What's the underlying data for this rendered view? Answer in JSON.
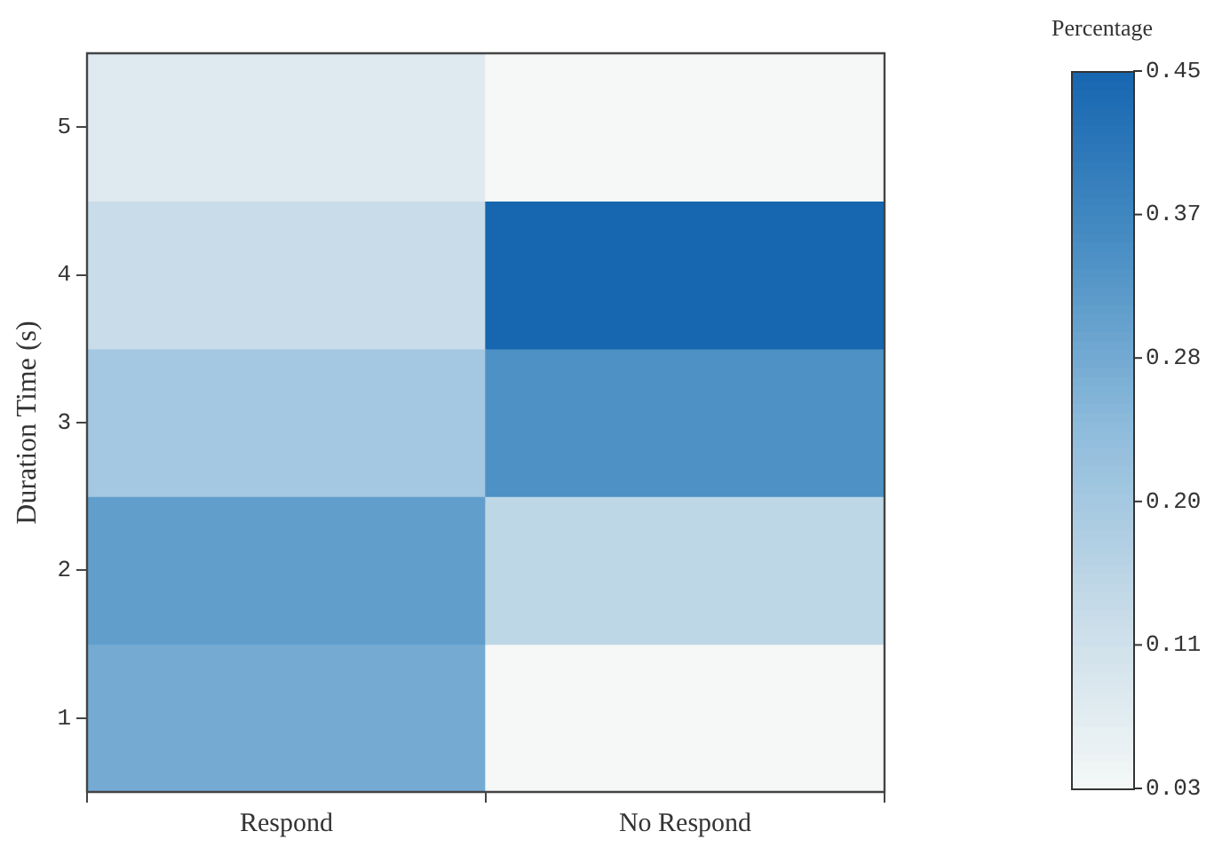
{
  "chart_data": {
    "type": "heatmap",
    "ylabel": "Duration Time (s)",
    "clabel": "Percentage",
    "categories": [
      "Respond",
      "No Respond"
    ],
    "y_categories": [
      "5",
      "4",
      "3",
      "2",
      "1"
    ],
    "cells": [
      [
        0.08,
        0.03
      ],
      [
        0.13,
        0.45
      ],
      [
        0.2,
        0.34
      ],
      [
        0.31,
        0.15
      ],
      [
        0.28,
        0.03
      ]
    ],
    "clim": [
      0.03,
      0.45
    ],
    "cticks": [
      {
        "value": 0.03,
        "label": "0.03"
      },
      {
        "value": 0.114,
        "label": "0.11"
      },
      {
        "value": 0.198,
        "label": "0.20"
      },
      {
        "value": 0.282,
        "label": "0.28"
      },
      {
        "value": 0.366,
        "label": "0.37"
      },
      {
        "value": 0.45,
        "label": "0.45"
      }
    ]
  }
}
